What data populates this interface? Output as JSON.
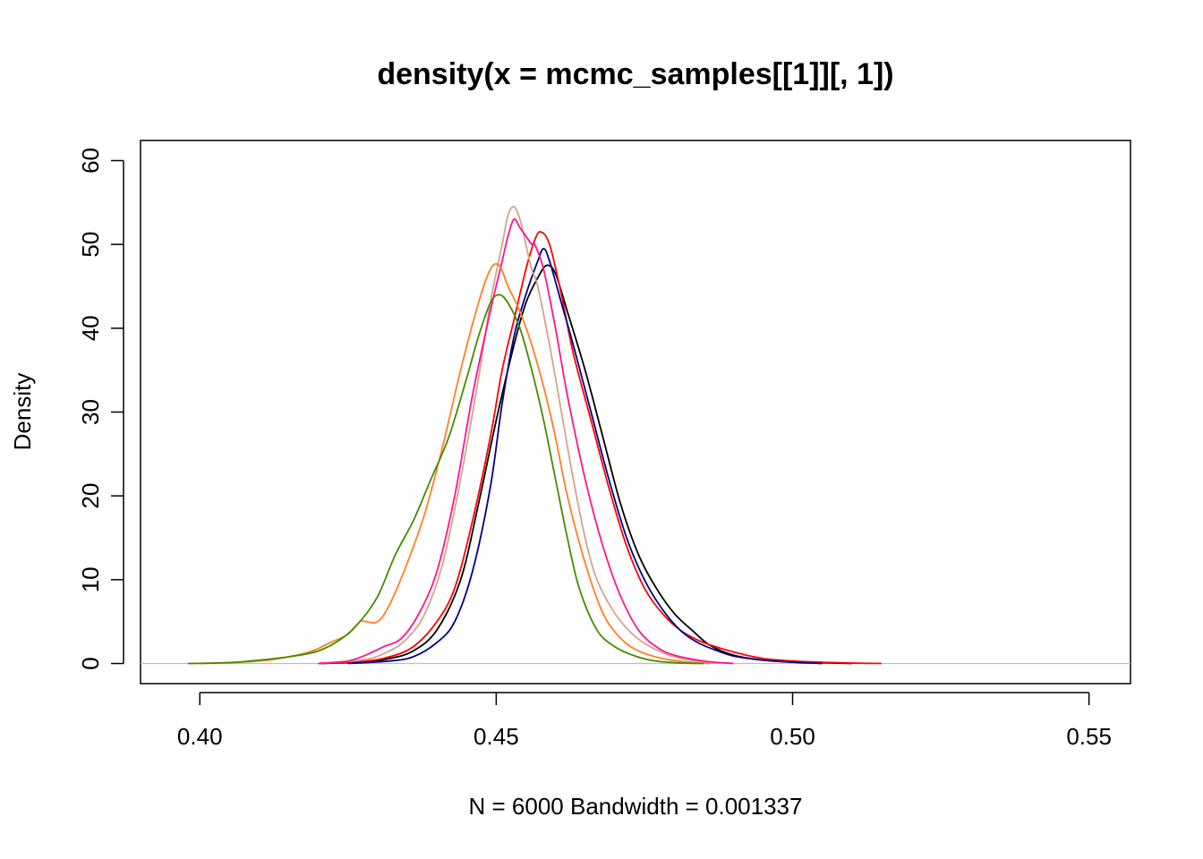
{
  "chart_data": {
    "type": "line",
    "title": "density(x = mcmc_samples[[1]][, 1])",
    "xlabel": "N = 6000   Bandwidth = 0.001337",
    "ylabel": "Density",
    "xlim": [
      0.39,
      0.557
    ],
    "ylim": [
      -2.4,
      62.4
    ],
    "x_ticks": [
      0.4,
      0.45,
      0.5,
      0.55
    ],
    "x_tick_labels": [
      "0.40",
      "0.45",
      "0.50",
      "0.55"
    ],
    "y_ticks": [
      0,
      10,
      20,
      30,
      40,
      50,
      60
    ],
    "y_tick_labels": [
      "0",
      "10",
      "20",
      "30",
      "40",
      "50",
      "60"
    ],
    "grid": false,
    "reference_line_y": 0,
    "series": [
      {
        "color": "#000000",
        "x": [
          0.42,
          0.428,
          0.432,
          0.436,
          0.44,
          0.444,
          0.447,
          0.45,
          0.453,
          0.455,
          0.457,
          0.4585,
          0.46,
          0.462,
          0.465,
          0.468,
          0.471,
          0.474,
          0.477,
          0.48,
          0.483,
          0.486,
          0.49,
          0.495,
          0.5,
          0.505,
          0.51
        ],
        "y": [
          0,
          0.2,
          0.6,
          1.5,
          4,
          10,
          19,
          29,
          38,
          43,
          46,
          47.5,
          46.5,
          42,
          35,
          27,
          19,
          13,
          9,
          6,
          4,
          2.2,
          1,
          0.4,
          0.2,
          0.1,
          0
        ]
      },
      {
        "color": "#FF0000",
        "x": [
          0.42,
          0.428,
          0.432,
          0.436,
          0.44,
          0.443,
          0.446,
          0.449,
          0.451,
          0.453,
          0.455,
          0.4565,
          0.4575,
          0.459,
          0.461,
          0.463,
          0.466,
          0.469,
          0.472,
          0.475,
          0.478,
          0.481,
          0.484,
          0.487,
          0.491,
          0.495,
          0.5,
          0.505,
          0.51,
          0.515
        ],
        "y": [
          0,
          0.3,
          0.8,
          2,
          5,
          9,
          17,
          27,
          35,
          41,
          47,
          50.5,
          51.5,
          50,
          44,
          37,
          29,
          21,
          14,
          9,
          6,
          4,
          2.8,
          2,
          1.2,
          0.6,
          0.3,
          0.15,
          0.05,
          0
        ]
      },
      {
        "color": "#00008B",
        "x": [
          0.425,
          0.432,
          0.436,
          0.44,
          0.443,
          0.446,
          0.449,
          0.451,
          0.453,
          0.455,
          0.457,
          0.458,
          0.459,
          0.461,
          0.463,
          0.466,
          0.469,
          0.472,
          0.475,
          0.478,
          0.481,
          0.484,
          0.487,
          0.49,
          0.495,
          0.5,
          0.505
        ],
        "y": [
          0,
          0.3,
          0.8,
          2.5,
          5,
          11,
          21,
          31,
          39,
          44,
          48,
          49.5,
          48,
          43,
          38,
          30,
          22,
          15,
          10,
          6.5,
          4,
          2.5,
          1.6,
          0.9,
          0.4,
          0.15,
          0
        ]
      },
      {
        "color": "#D2A58C",
        "x": [
          0.42,
          0.428,
          0.432,
          0.435,
          0.438,
          0.441,
          0.444,
          0.447,
          0.449,
          0.451,
          0.452,
          0.453,
          0.454,
          0.455,
          0.456,
          0.457,
          0.459,
          0.461,
          0.463,
          0.465,
          0.467,
          0.47,
          0.473,
          0.476,
          0.48,
          0.485,
          0.49
        ],
        "y": [
          0,
          0.5,
          1.5,
          3,
          6,
          12,
          22,
          34,
          43,
          50,
          53.5,
          54.5,
          53,
          50,
          47,
          45,
          38,
          30,
          22,
          15,
          10,
          6,
          3.5,
          2,
          0.8,
          0.2,
          0
        ]
      },
      {
        "color": "#FF1493",
        "x": [
          0.42,
          0.425,
          0.428,
          0.431,
          0.434,
          0.437,
          0.44,
          0.443,
          0.446,
          0.449,
          0.451,
          0.452,
          0.453,
          0.454,
          0.455,
          0.456,
          0.4565,
          0.458,
          0.46,
          0.462,
          0.465,
          0.468,
          0.471,
          0.474,
          0.477,
          0.48,
          0.485,
          0.49
        ],
        "y": [
          0,
          0.3,
          1,
          2,
          3,
          6,
          11,
          20,
          32,
          42,
          48,
          51,
          53,
          52,
          51,
          50,
          50,
          47,
          40,
          32,
          22,
          14,
          8,
          4,
          2,
          1,
          0.3,
          0
        ]
      },
      {
        "color": "#FF7F24",
        "x": [
          0.4,
          0.41,
          0.415,
          0.419,
          0.422,
          0.425,
          0.427,
          0.428,
          0.43,
          0.432,
          0.435,
          0.438,
          0.441,
          0.444,
          0.447,
          0.449,
          0.4505,
          0.452,
          0.454,
          0.456,
          0.458,
          0.46,
          0.462,
          0.465,
          0.468,
          0.471,
          0.474,
          0.478,
          0.482,
          0.486
        ],
        "y": [
          0,
          0.3,
          0.8,
          1.5,
          2.5,
          3.5,
          5,
          5,
          5,
          7,
          12,
          18,
          26,
          35,
          43,
          47,
          47.5,
          45,
          42,
          38,
          33,
          27,
          20,
          12,
          6,
          3,
          1.5,
          0.6,
          0.2,
          0
        ]
      },
      {
        "color": "#458B00",
        "x": [
          0.398,
          0.405,
          0.41,
          0.415,
          0.42,
          0.424,
          0.427,
          0.43,
          0.433,
          0.436,
          0.439,
          0.442,
          0.445,
          0.447,
          0.449,
          0.4505,
          0.452,
          0.454,
          0.456,
          0.458,
          0.46,
          0.462,
          0.464,
          0.467,
          0.47,
          0.473,
          0.476,
          0.48,
          0.485
        ],
        "y": [
          0,
          0.1,
          0.4,
          0.8,
          1.5,
          3,
          5,
          8,
          13,
          17,
          22,
          27,
          34,
          39,
          43,
          44,
          43,
          40,
          35,
          29,
          22,
          15,
          9,
          4,
          2,
          1,
          0.4,
          0.1,
          0
        ]
      }
    ]
  }
}
